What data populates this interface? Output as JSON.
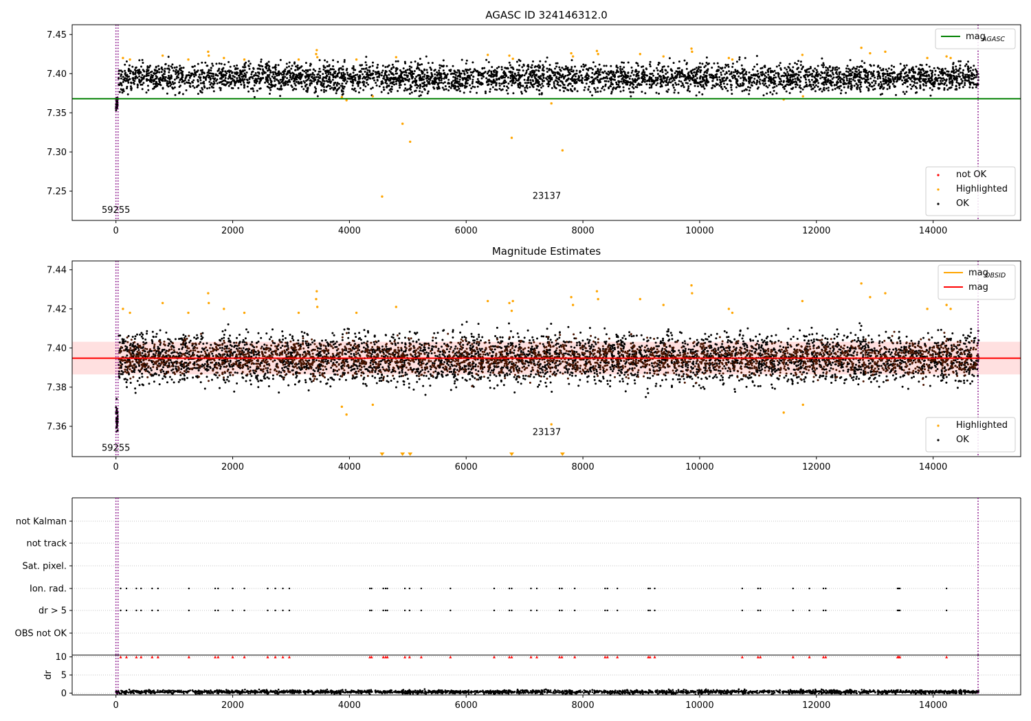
{
  "chart_data": [
    {
      "type": "scatter",
      "title": "AGASC ID 324146312.0",
      "xlabel": "",
      "ylabel": "",
      "xlim": [
        -750,
        15500
      ],
      "ylim": [
        7.2125,
        7.4625
      ],
      "xticks": [
        0,
        2000,
        4000,
        6000,
        8000,
        10000,
        12000,
        14000,
        16000
      ],
      "yticks": [
        7.25,
        7.3,
        7.35,
        7.4,
        7.45
      ],
      "ytick_decimals": 2,
      "colors": {
        "ok": "#000000",
        "highlighted": "#ffa500",
        "not_ok": "#ff0000",
        "agasc_line": "#008000",
        "vline": "#800080"
      },
      "hline": {
        "name": "mag_AGASC",
        "y": 7.368,
        "x_range": [
          -750,
          15500
        ],
        "color": "#008000"
      },
      "vlines": [
        0,
        36,
        14770
      ],
      "annotations": [
        {
          "text": "59255",
          "x": 0,
          "y": 7.222
        },
        {
          "text": "23137",
          "x": 7380,
          "y": 7.24
        }
      ],
      "legend_top": {
        "position": "top-right",
        "entries": [
          {
            "label": "mag",
            "sub": "AGASC",
            "style": "line",
            "color": "#008000"
          }
        ]
      },
      "legend_bottom": {
        "position": "bottom-right",
        "entries": [
          {
            "label": "not OK",
            "style": "point",
            "color": "#ff0000"
          },
          {
            "label": "Highlighted",
            "style": "point",
            "color": "#ffa500"
          },
          {
            "label": "OK",
            "style": "point",
            "color": "#000000"
          }
        ]
      },
      "series": [
        {
          "name": "OK",
          "kind": "band",
          "x_range": [
            45,
            14780
          ],
          "center": 7.395,
          "spread": 0.009,
          "n": 4200,
          "color": "#000000"
        },
        {
          "name": "OK early",
          "kind": "cluster",
          "x_range": [
            0,
            30
          ],
          "center": 7.363,
          "spread": 0.004,
          "n": 40,
          "color": "#000000"
        },
        {
          "name": "Highlighted",
          "kind": "points",
          "color": "#ffa500",
          "x": [
            120,
            240,
            800,
            1240,
            1580,
            1590,
            1850,
            2200,
            3130,
            3430,
            3440,
            3450,
            3870,
            3950,
            4120,
            4400,
            4560,
            4800,
            4910,
            5040,
            6370,
            6740,
            6780,
            6800,
            7460,
            7650,
            7800,
            7830,
            8240,
            8260,
            8980,
            9380,
            9860,
            9870,
            10500,
            10560,
            11440,
            11760,
            11770,
            12770,
            12920,
            13180,
            13900,
            14230,
            14300
          ],
          "y": [
            7.42,
            7.418,
            7.423,
            7.418,
            7.428,
            7.423,
            7.42,
            7.418,
            7.418,
            7.425,
            7.43,
            7.421,
            7.37,
            7.366,
            7.418,
            7.371,
            7.243,
            7.421,
            7.336,
            7.313,
            7.424,
            7.423,
            7.318,
            7.419,
            7.362,
            7.302,
            7.426,
            7.422,
            7.429,
            7.425,
            7.425,
            7.422,
            7.432,
            7.428,
            7.42,
            7.418,
            7.367,
            7.424,
            7.371,
            7.433,
            7.426,
            7.428,
            7.42,
            7.422,
            7.42
          ]
        }
      ]
    },
    {
      "type": "scatter",
      "title": "Magnitude Estimates",
      "xlabel": "",
      "ylabel": "",
      "xlim": [
        -750,
        15500
      ],
      "ylim": [
        7.3445,
        7.4445
      ],
      "xticks": [
        0,
        2000,
        4000,
        6000,
        8000,
        10000,
        12000,
        14000,
        16000
      ],
      "yticks": [
        7.36,
        7.38,
        7.4,
        7.42,
        7.44
      ],
      "ytick_decimals": 2,
      "colors": {
        "ok": "#000000",
        "highlighted": "#ffa500",
        "obsid": "#ffa500",
        "mag_line": "#ff0000",
        "band": "#ff0000",
        "vline": "#800080"
      },
      "mag_line": {
        "name": "mag",
        "y": 7.3948,
        "x_range": [
          -750,
          15500
        ],
        "color": "#ff0000"
      },
      "band": {
        "y_range": [
          7.3865,
          7.4032
        ],
        "x_range": [
          -750,
          15500
        ]
      },
      "vlines": [
        0,
        36,
        14770
      ],
      "annotations": [
        {
          "text": "59255",
          "x": 0,
          "y": 7.3475
        },
        {
          "text": "23137",
          "x": 7380,
          "y": 7.3555
        }
      ],
      "legend_top": {
        "position": "top-right",
        "entries": [
          {
            "label": "mag",
            "sub": "OBSID",
            "style": "line",
            "color": "#ffa500"
          },
          {
            "label": "mag",
            "style": "line",
            "color": "#ff0000"
          }
        ]
      },
      "legend_bottom": {
        "position": "bottom-right",
        "entries": [
          {
            "label": "Highlighted",
            "style": "point",
            "color": "#ffa500"
          },
          {
            "label": "OK",
            "style": "point",
            "color": "#000000"
          }
        ]
      },
      "series": [
        {
          "name": "OK",
          "kind": "band",
          "x_range": [
            45,
            14780
          ],
          "center": 7.3948,
          "spread": 0.0065,
          "n": 4200,
          "color": "#000000"
        },
        {
          "name": "OK early",
          "kind": "cluster",
          "x_range": [
            0,
            30
          ],
          "center": 7.364,
          "spread": 0.004,
          "n": 40,
          "color": "#000000"
        },
        {
          "name": "mag_OBSID",
          "kind": "obsid_band",
          "x_range": [
            45,
            14780
          ],
          "center": 7.3948,
          "spread": 0.0045,
          "n": 2400,
          "color": "#4a1500"
        },
        {
          "name": "Highlighted",
          "kind": "points",
          "color": "#ffa500",
          "x": [
            120,
            240,
            800,
            1240,
            1580,
            1590,
            1850,
            2200,
            3130,
            3430,
            3440,
            3450,
            3870,
            3950,
            4120,
            4400,
            4800,
            6370,
            6740,
            6780,
            6800,
            7460,
            7800,
            7830,
            8240,
            8260,
            8980,
            9380,
            9860,
            9870,
            10500,
            10560,
            11440,
            11760,
            11770,
            12770,
            12920,
            13180,
            13900,
            14230,
            14300
          ],
          "y": [
            7.42,
            7.418,
            7.423,
            7.418,
            7.428,
            7.423,
            7.42,
            7.418,
            7.418,
            7.425,
            7.429,
            7.421,
            7.37,
            7.366,
            7.418,
            7.371,
            7.421,
            7.424,
            7.423,
            7.419,
            7.424,
            7.361,
            7.426,
            7.422,
            7.429,
            7.425,
            7.425,
            7.422,
            7.432,
            7.428,
            7.42,
            7.418,
            7.367,
            7.424,
            7.371,
            7.433,
            7.426,
            7.428,
            7.42,
            7.422,
            7.42
          ]
        },
        {
          "name": "Highlighted out of range",
          "kind": "markers",
          "color": "#ffa500",
          "x": [
            4560,
            4910,
            5040,
            6780,
            7650
          ]
        }
      ]
    },
    {
      "type": "scatter",
      "title": "",
      "xlabel": "",
      "ylabel": "",
      "xlim": [
        -750,
        15500
      ],
      "categories": [
        "not Kalman",
        "not track",
        "Sat. pixel.",
        "Ion. rad.",
        "dr > 5",
        "OBS not OK"
      ],
      "flag_x": [
        80,
        180,
        350,
        430,
        620,
        720,
        1250,
        1700,
        1750,
        2000,
        2200,
        2600,
        2730,
        2860,
        2970,
        4350,
        4380,
        4580,
        4620,
        4650,
        4950,
        5030,
        5230,
        5730,
        6480,
        6740,
        6780,
        7110,
        7210,
        7600,
        7640,
        7860,
        8380,
        8420,
        8590,
        9120,
        9150,
        9230,
        10730,
        11000,
        11040,
        11600,
        11880,
        12120,
        12160,
        13390,
        13410,
        13430,
        14230
      ],
      "flag_rows": [
        "Ion. rad.",
        "dr > 5"
      ],
      "vlines": [
        0,
        36,
        14770
      ],
      "colors": {
        "points": "#000000",
        "vline": "#800080"
      }
    },
    {
      "type": "scatter",
      "title": "",
      "xlabel": "",
      "ylabel": "dr",
      "xlim": [
        -750,
        15500
      ],
      "ylim": [
        -0.5,
        10.5
      ],
      "xticks": [
        0,
        2000,
        4000,
        6000,
        8000,
        10000,
        12000,
        14000,
        16000
      ],
      "yticks": [
        0,
        5,
        10
      ],
      "ytick_decimals": 0,
      "clip_value": 10,
      "clip_color": "#ff0000",
      "series": [
        {
          "name": "dr",
          "kind": "dr_band",
          "x_range": [
            0,
            14780
          ],
          "center": 0.35,
          "spread": 0.25,
          "n": 2500,
          "color": "#000000"
        }
      ],
      "vlines": [
        0,
        36,
        14770
      ],
      "colors": {
        "points": "#000000",
        "vline": "#800080"
      }
    }
  ]
}
